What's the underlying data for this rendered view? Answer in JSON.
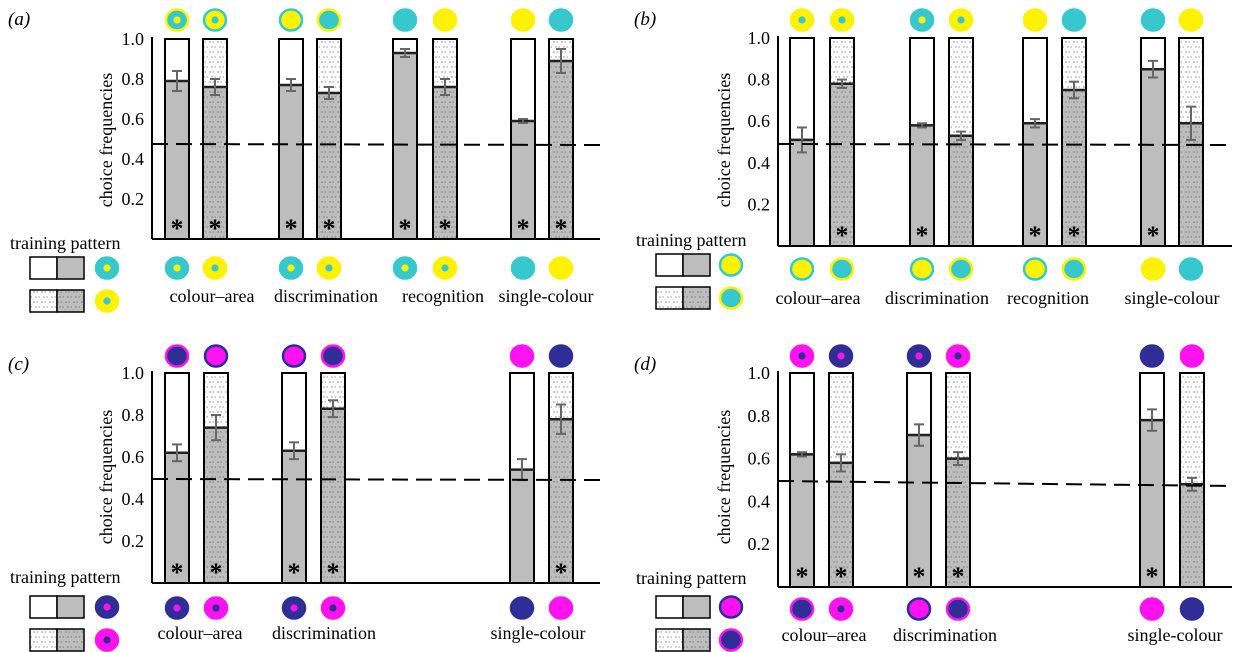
{
  "colors": {
    "cyan": "#36c8cc",
    "yellow": "#fff200",
    "navy": "#2e2e96",
    "magenta": "#ff12f0",
    "bar_fill": "#bdbdbd",
    "outline": "#000000",
    "error_bar": "#666666"
  },
  "common": {
    "ylabel": "choice frequencies",
    "training_label": "training pattern",
    "chance_level": 0.5,
    "yticks": [
      "0.2",
      "0.4",
      "0.6",
      "0.8",
      "1.0"
    ]
  },
  "chart_data": [
    {
      "type": "bar",
      "panel": "(a)",
      "ylim": [
        0,
        1
      ],
      "group_labels": [
        "colour–area",
        "discrimination",
        "recognition",
        "single-colour"
      ],
      "legend": {
        "solid": {
          "outer": "cyan",
          "inner": "yellow"
        },
        "dotted": {
          "outer": "yellow",
          "inner": "cyan"
        }
      },
      "bars": [
        {
          "group": 0,
          "pattern": "solid",
          "value": 0.79,
          "err": 0.05,
          "sig": true,
          "top": {
            "outer": "cyan",
            "inner": "yellow",
            "ring": "yellow"
          },
          "bottom": {
            "outer": "cyan",
            "inner": "yellow",
            "ring": "cyan"
          }
        },
        {
          "group": 0,
          "pattern": "dotted",
          "value": 0.76,
          "err": 0.04,
          "sig": true,
          "top": {
            "outer": "yellow",
            "inner": "cyan",
            "ring": "cyan"
          },
          "bottom": {
            "outer": "yellow",
            "inner": "cyan",
            "ring": "yellow"
          }
        },
        {
          "group": 1,
          "pattern": "solid",
          "value": 0.77,
          "err": 0.03,
          "sig": true,
          "top": {
            "outer": "yellow",
            "inner": "yellow",
            "ring": "cyan"
          },
          "bottom": {
            "outer": "cyan",
            "inner": "yellow",
            "ring": "cyan"
          }
        },
        {
          "group": 1,
          "pattern": "dotted",
          "value": 0.73,
          "err": 0.03,
          "sig": true,
          "top": {
            "outer": "cyan",
            "inner": "cyan",
            "ring": "yellow"
          },
          "bottom": {
            "outer": "yellow",
            "inner": "cyan",
            "ring": "yellow"
          }
        },
        {
          "group": 2,
          "pattern": "solid",
          "value": 0.93,
          "err": 0.02,
          "sig": true,
          "top": {
            "outer": "cyan",
            "inner": "cyan",
            "ring": "cyan"
          },
          "bottom": {
            "outer": "cyan",
            "inner": "yellow",
            "ring": "cyan"
          }
        },
        {
          "group": 2,
          "pattern": "dotted",
          "value": 0.76,
          "err": 0.04,
          "sig": true,
          "top": {
            "outer": "yellow",
            "inner": "yellow",
            "ring": "yellow"
          },
          "bottom": {
            "outer": "yellow",
            "inner": "cyan",
            "ring": "yellow"
          }
        },
        {
          "group": 3,
          "pattern": "solid",
          "value": 0.59,
          "err": 0.01,
          "sig": true,
          "top": {
            "outer": "yellow",
            "inner": "yellow",
            "ring": "yellow"
          },
          "bottom": {
            "outer": "cyan",
            "inner": "cyan",
            "ring": "cyan"
          }
        },
        {
          "group": 3,
          "pattern": "dotted",
          "value": 0.89,
          "err": 0.06,
          "sig": true,
          "top": {
            "outer": "cyan",
            "inner": "cyan",
            "ring": "cyan"
          },
          "bottom": {
            "outer": "yellow",
            "inner": "yellow",
            "ring": "yellow"
          }
        }
      ]
    },
    {
      "type": "bar",
      "panel": "(b)",
      "ylim": [
        0,
        1
      ],
      "group_labels": [
        "colour–area",
        "discrimination",
        "recognition",
        "single-colour"
      ],
      "legend": {
        "solid": {
          "outer": "yellow",
          "inner": "yellow",
          "ring": "cyan"
        },
        "dotted": {
          "outer": "cyan",
          "inner": "cyan",
          "ring": "yellow"
        }
      },
      "bars": [
        {
          "group": 0,
          "pattern": "solid",
          "value": 0.51,
          "err": 0.06,
          "sig": false,
          "top": {
            "outer": "yellow",
            "inner": "cyan",
            "ring": "yellow"
          },
          "bottom": {
            "outer": "yellow",
            "inner": "yellow",
            "ring": "cyan"
          }
        },
        {
          "group": 0,
          "pattern": "dotted",
          "value": 0.78,
          "err": 0.02,
          "sig": true,
          "top": {
            "outer": "yellow",
            "inner": "cyan",
            "ring": "yellow"
          },
          "bottom": {
            "outer": "cyan",
            "inner": "cyan",
            "ring": "yellow"
          }
        },
        {
          "group": 1,
          "pattern": "solid",
          "value": 0.58,
          "err": 0.01,
          "sig": true,
          "top": {
            "outer": "cyan",
            "inner": "yellow",
            "ring": "cyan"
          },
          "bottom": {
            "outer": "yellow",
            "inner": "yellow",
            "ring": "cyan"
          }
        },
        {
          "group": 1,
          "pattern": "dotted",
          "value": 0.53,
          "err": 0.02,
          "sig": false,
          "top": {
            "outer": "yellow",
            "inner": "cyan",
            "ring": "yellow"
          },
          "bottom": {
            "outer": "cyan",
            "inner": "cyan",
            "ring": "yellow"
          }
        },
        {
          "group": 2,
          "pattern": "solid",
          "value": 0.59,
          "err": 0.02,
          "sig": true,
          "top": {
            "outer": "yellow",
            "inner": "yellow",
            "ring": "yellow"
          },
          "bottom": {
            "outer": "yellow",
            "inner": "yellow",
            "ring": "cyan"
          }
        },
        {
          "group": 2,
          "pattern": "dotted",
          "value": 0.75,
          "err": 0.04,
          "sig": true,
          "top": {
            "outer": "cyan",
            "inner": "cyan",
            "ring": "cyan"
          },
          "bottom": {
            "outer": "cyan",
            "inner": "cyan",
            "ring": "yellow"
          }
        },
        {
          "group": 3,
          "pattern": "solid",
          "value": 0.85,
          "err": 0.04,
          "sig": true,
          "top": {
            "outer": "cyan",
            "inner": "cyan",
            "ring": "cyan"
          },
          "bottom": {
            "outer": "yellow",
            "inner": "yellow",
            "ring": "yellow"
          }
        },
        {
          "group": 3,
          "pattern": "dotted",
          "value": 0.59,
          "err": 0.08,
          "sig": false,
          "top": {
            "outer": "yellow",
            "inner": "yellow",
            "ring": "yellow"
          },
          "bottom": {
            "outer": "cyan",
            "inner": "cyan",
            "ring": "cyan"
          }
        }
      ]
    },
    {
      "type": "bar",
      "panel": "(c)",
      "ylim": [
        0,
        1
      ],
      "group_labels": [
        "colour–area",
        "discrimination",
        "single-colour"
      ],
      "legend": {
        "solid": {
          "outer": "navy",
          "inner": "magenta"
        },
        "dotted": {
          "outer": "magenta",
          "inner": "navy"
        }
      },
      "bars": [
        {
          "group": 0,
          "pattern": "solid",
          "value": 0.62,
          "err": 0.04,
          "sig": true,
          "top": {
            "outer": "navy",
            "inner": "navy",
            "ring": "magenta"
          },
          "bottom": {
            "outer": "navy",
            "inner": "magenta",
            "ring": "navy"
          }
        },
        {
          "group": 0,
          "pattern": "dotted",
          "value": 0.74,
          "err": 0.06,
          "sig": true,
          "top": {
            "outer": "magenta",
            "inner": "magenta",
            "ring": "navy"
          },
          "bottom": {
            "outer": "magenta",
            "inner": "navy",
            "ring": "magenta"
          }
        },
        {
          "group": 1,
          "pattern": "solid",
          "value": 0.63,
          "err": 0.04,
          "sig": true,
          "top": {
            "outer": "magenta",
            "inner": "magenta",
            "ring": "navy"
          },
          "bottom": {
            "outer": "navy",
            "inner": "magenta",
            "ring": "navy"
          }
        },
        {
          "group": 1,
          "pattern": "dotted",
          "value": 0.83,
          "err": 0.04,
          "sig": true,
          "top": {
            "outer": "navy",
            "inner": "navy",
            "ring": "magenta"
          },
          "bottom": {
            "outer": "magenta",
            "inner": "navy",
            "ring": "magenta"
          }
        },
        {
          "group": 2,
          "pattern": "solid",
          "value": 0.54,
          "err": 0.05,
          "sig": false,
          "top": {
            "outer": "magenta",
            "inner": "magenta",
            "ring": "magenta"
          },
          "bottom": {
            "outer": "navy",
            "inner": "navy",
            "ring": "navy"
          }
        },
        {
          "group": 2,
          "pattern": "dotted",
          "value": 0.78,
          "err": 0.07,
          "sig": true,
          "top": {
            "outer": "navy",
            "inner": "navy",
            "ring": "navy"
          },
          "bottom": {
            "outer": "magenta",
            "inner": "magenta",
            "ring": "magenta"
          }
        }
      ]
    },
    {
      "type": "bar",
      "panel": "(d)",
      "ylim": [
        0,
        1
      ],
      "group_labels": [
        "colour–area",
        "discrimination",
        "single-colour"
      ],
      "legend": {
        "solid": {
          "outer": "magenta",
          "inner": "magenta",
          "ring": "navy"
        },
        "dotted": {
          "outer": "navy",
          "inner": "navy",
          "ring": "magenta"
        }
      },
      "bars": [
        {
          "group": 0,
          "pattern": "solid",
          "value": 0.62,
          "err": 0.01,
          "sig": true,
          "top": {
            "outer": "magenta",
            "inner": "navy",
            "ring": "magenta"
          },
          "bottom": {
            "outer": "navy",
            "inner": "navy",
            "ring": "magenta"
          }
        },
        {
          "group": 0,
          "pattern": "dotted",
          "value": 0.58,
          "err": 0.04,
          "sig": true,
          "top": {
            "outer": "navy",
            "inner": "magenta",
            "ring": "navy"
          },
          "bottom": {
            "outer": "magenta",
            "inner": "navy",
            "ring": "magenta"
          }
        },
        {
          "group": 1,
          "pattern": "solid",
          "value": 0.71,
          "err": 0.05,
          "sig": true,
          "top": {
            "outer": "navy",
            "inner": "magenta",
            "ring": "navy"
          },
          "bottom": {
            "outer": "magenta",
            "inner": "magenta",
            "ring": "navy"
          }
        },
        {
          "group": 1,
          "pattern": "dotted",
          "value": 0.6,
          "err": 0.03,
          "sig": true,
          "top": {
            "outer": "magenta",
            "inner": "navy",
            "ring": "magenta"
          },
          "bottom": {
            "outer": "navy",
            "inner": "navy",
            "ring": "magenta"
          }
        },
        {
          "group": 2,
          "pattern": "solid",
          "value": 0.78,
          "err": 0.05,
          "sig": true,
          "top": {
            "outer": "navy",
            "inner": "navy",
            "ring": "navy"
          },
          "bottom": {
            "outer": "magenta",
            "inner": "magenta",
            "ring": "magenta"
          }
        },
        {
          "group": 2,
          "pattern": "dotted",
          "value": 0.48,
          "err": 0.03,
          "sig": false,
          "top": {
            "outer": "magenta",
            "inner": "magenta",
            "ring": "magenta"
          },
          "bottom": {
            "outer": "navy",
            "inner": "navy",
            "ring": "navy"
          }
        }
      ]
    }
  ]
}
